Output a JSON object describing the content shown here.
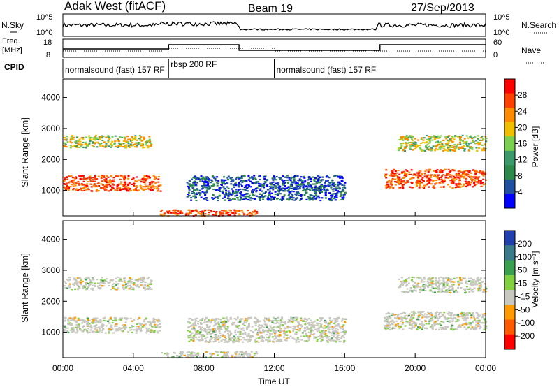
{
  "chart_data": {
    "type": "heatmap",
    "title": "Adak West (fitACF)",
    "beam": "Beam 19",
    "date": "27/Sep/2013",
    "xlabel": "Time UT",
    "x_ticks": [
      "00:00",
      "04:00",
      "08:00",
      "12:00",
      "16:00",
      "20:00",
      "00:00"
    ],
    "xlim_hours": [
      0,
      24
    ],
    "top_panels": {
      "nsky_label": "N.Sky",
      "nsky_ticks": [
        "10^5",
        "10^0"
      ],
      "nsearch_label": "N.Search",
      "nsearch_ticks": [
        "10^5",
        "10^0"
      ],
      "freq_label": "Freq.",
      "freq_unit": "[MHz]",
      "freq_ticks": [
        "18",
        "8"
      ],
      "nave_label": "Nave",
      "nave_ticks": [
        "60",
        "0"
      ],
      "cpid_label": "CPID",
      "cpid_segments": [
        {
          "label": "normalsound (fast) 157 RF",
          "start_hour": 0,
          "end_hour": 6
        },
        {
          "label": "rbsp 200 RF",
          "start_hour": 6,
          "end_hour": 12
        },
        {
          "label": "normalsound (fast) 157 RF",
          "start_hour": 12,
          "end_hour": 24
        }
      ],
      "freq_profile": [
        {
          "start_hour": 0,
          "end_hour": 6,
          "level": "mid"
        },
        {
          "start_hour": 6,
          "end_hour": 10,
          "level": "high"
        },
        {
          "start_hour": 10,
          "end_hour": 18,
          "level": "low"
        },
        {
          "start_hour": 18,
          "end_hour": 24,
          "level": "high"
        }
      ]
    },
    "power_panel": {
      "ylabel": "Slant Range [km]",
      "ylim": [
        180,
        4600
      ],
      "y_ticks": [
        1000,
        2000,
        3000,
        4000
      ],
      "colorbar_label": "Power [dB]",
      "colorbar_ticks": [
        "28",
        "24",
        "20",
        "16",
        "12",
        "8",
        "4"
      ],
      "colorbar_colors": [
        "#ff0000",
        "#ff4000",
        "#ff8c00",
        "#f0c000",
        "#7cd050",
        "#3c9a6a",
        "#2d8a4a",
        "#2050a0",
        "#0000ff"
      ]
    },
    "velocity_panel": {
      "ylabel": "Slant Range [km]",
      "ylim": [
        180,
        4600
      ],
      "y_ticks": [
        1000,
        2000,
        3000,
        4000
      ],
      "colorbar_label": "Velocity [m s⁻¹]",
      "colorbar_ticks": [
        "200",
        "100",
        "50",
        "15",
        "-15",
        "-50",
        "-100",
        "-200"
      ],
      "colorbar_colors": [
        "#2040b0",
        "#3a7a8a",
        "#3aa050",
        "#80d040",
        "#c8c8c0",
        "#ff9a00",
        "#ff5a00",
        "#ff0000"
      ]
    },
    "echo_bands": [
      {
        "start_hour": 0,
        "end_hour": 5.5,
        "range_km": [
          1000,
          1500
        ],
        "power": "strong",
        "velocity": "low"
      },
      {
        "start_hour": 0,
        "end_hour": 5.0,
        "range_km": [
          2400,
          2800
        ],
        "power": "moderate",
        "velocity": "low"
      },
      {
        "start_hour": 5.5,
        "end_hour": 11,
        "range_km": [
          200,
          400
        ],
        "power": "strong",
        "velocity": "low"
      },
      {
        "start_hour": 7,
        "end_hour": 16,
        "range_km": [
          700,
          1500
        ],
        "power": "weak",
        "velocity": "low"
      },
      {
        "start_hour": 18.2,
        "end_hour": 24,
        "range_km": [
          1100,
          1700
        ],
        "power": "strong",
        "velocity": "low"
      },
      {
        "start_hour": 19,
        "end_hour": 24,
        "range_km": [
          2300,
          2800
        ],
        "power": "moderate",
        "velocity": "low"
      }
    ]
  }
}
